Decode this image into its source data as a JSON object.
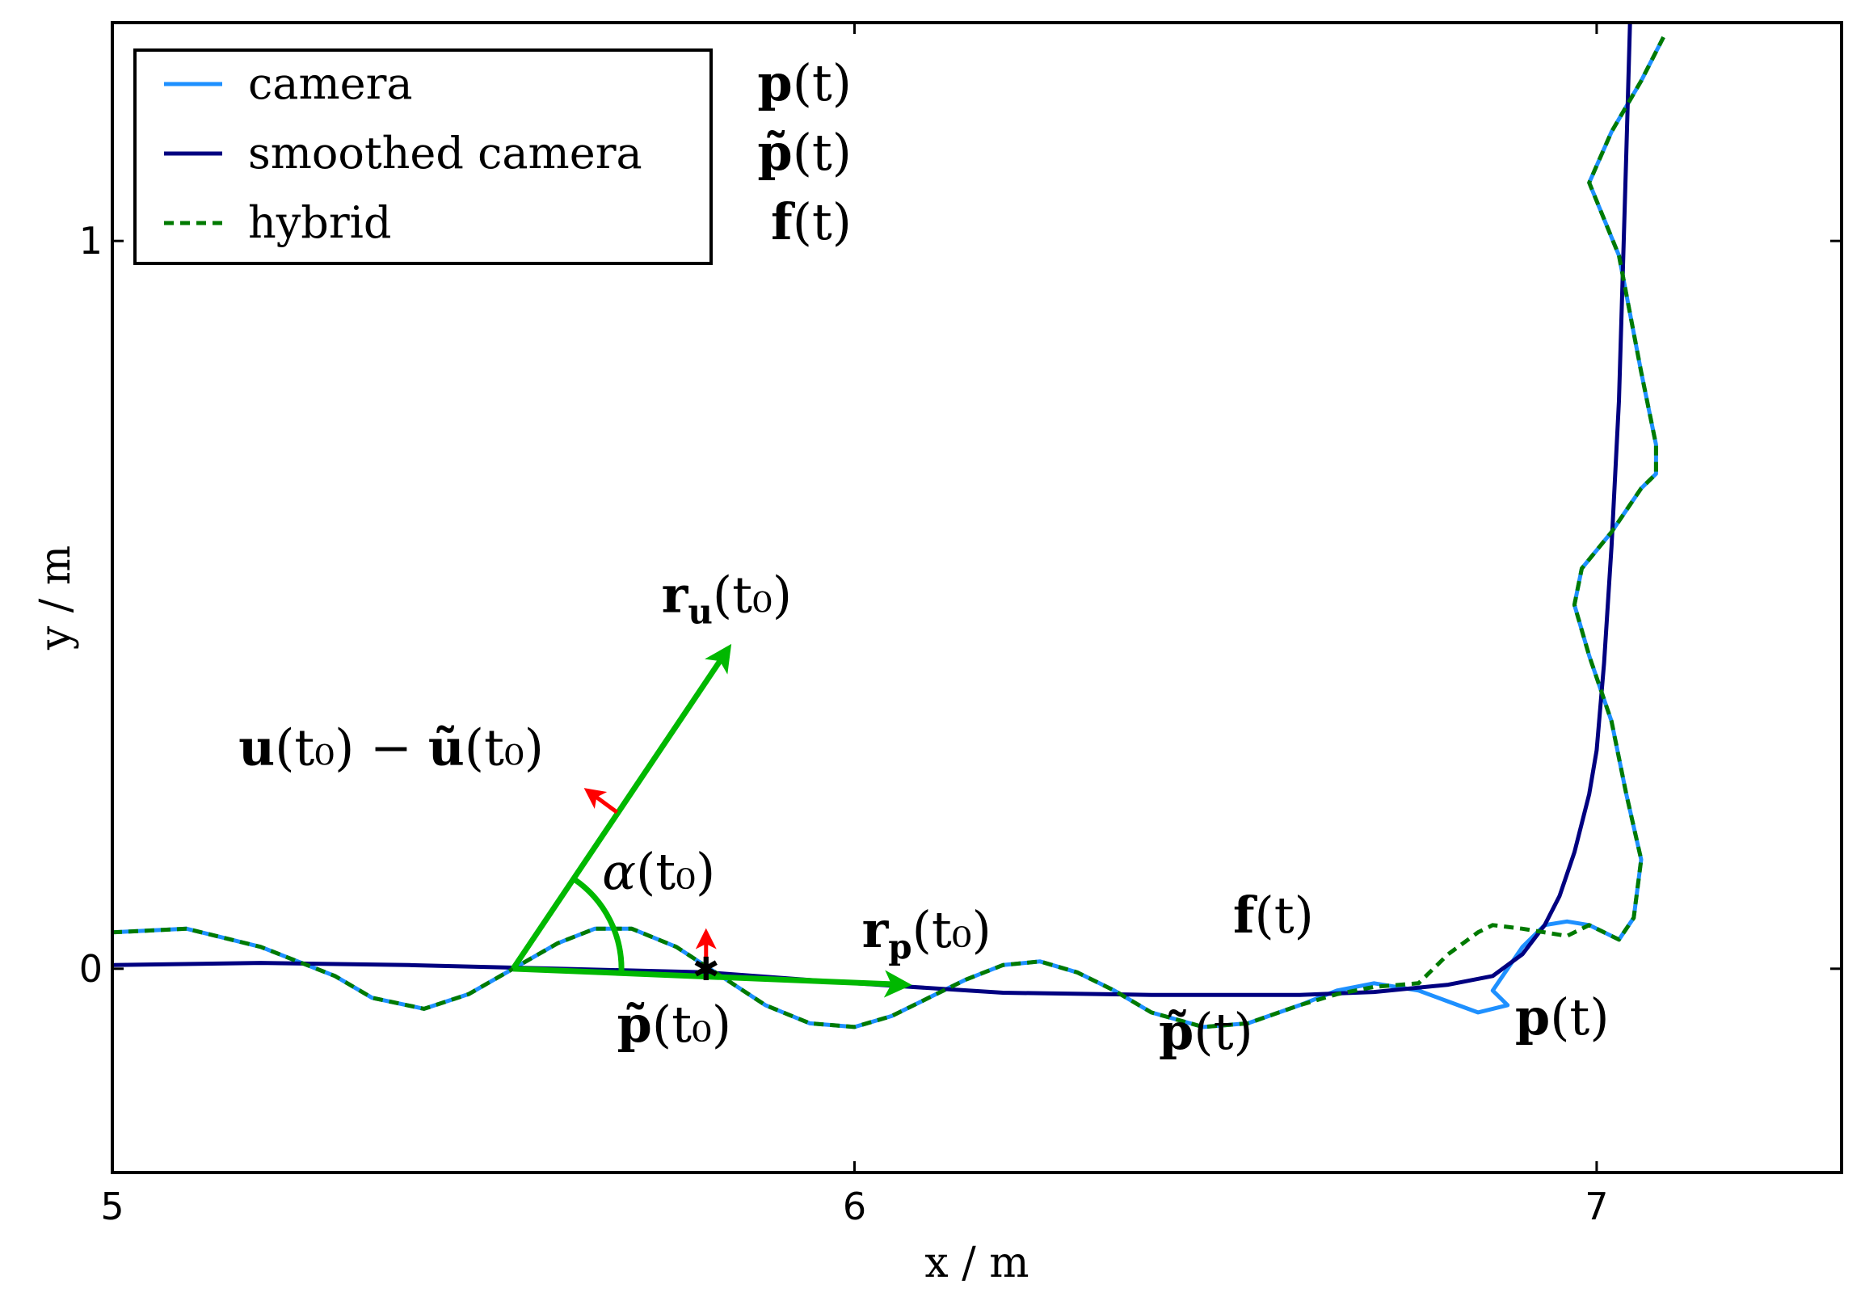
{
  "chart_data": {
    "type": "line",
    "xlabel": "x / m",
    "ylabel": "y / m",
    "xlim": [
      5.0,
      7.33
    ],
    "ylim": [
      -0.28,
      1.3
    ],
    "x_ticks": [
      {
        "value": 5,
        "label": "5"
      },
      {
        "value": 6,
        "label": "6"
      },
      {
        "value": 7,
        "label": "7"
      }
    ],
    "y_ticks": [
      {
        "value": 0,
        "label": "0"
      },
      {
        "value": 1,
        "label": "1"
      }
    ],
    "grid": false,
    "legend_position": "top-left",
    "legend": [
      {
        "label": "camera",
        "color": "#1e90ff",
        "style": "solid"
      },
      {
        "label": "smoothed camera",
        "color": "#000080",
        "style": "solid"
      },
      {
        "label": "hybrid",
        "color": "#007a00",
        "style": "dashed"
      }
    ],
    "legend_symbols": [
      {
        "bold": "p",
        "rest": "(t)"
      },
      {
        "bold": "p̃",
        "rest": "(t)"
      },
      {
        "bold": "f",
        "rest": "(t)"
      }
    ],
    "series": [
      {
        "name": "camera",
        "color": "#1e90ff",
        "style": "solid",
        "x": [
          5.0,
          5.1,
          5.2,
          5.3,
          5.35,
          5.42,
          5.48,
          5.54,
          5.6,
          5.65,
          5.7,
          5.76,
          5.82,
          5.88,
          5.94,
          6.0,
          6.05,
          6.1,
          6.15,
          6.2,
          6.25,
          6.3,
          6.35,
          6.4,
          6.47,
          6.53,
          6.6,
          6.65,
          6.7,
          6.76,
          6.8,
          6.84,
          6.88,
          6.86,
          6.9,
          6.93,
          6.96,
          6.99,
          7.03,
          7.05,
          7.06,
          7.04,
          7.02,
          6.99,
          6.97,
          6.98,
          7.02,
          7.06,
          7.08,
          7.08,
          7.06,
          7.03,
          6.99,
          7.02,
          7.06,
          7.09
        ],
        "y": [
          0.05,
          0.055,
          0.03,
          -0.01,
          -0.04,
          -0.055,
          -0.035,
          0.0,
          0.035,
          0.055,
          0.055,
          0.03,
          -0.01,
          -0.05,
          -0.075,
          -0.08,
          -0.065,
          -0.04,
          -0.015,
          0.005,
          0.01,
          -0.005,
          -0.03,
          -0.06,
          -0.08,
          -0.075,
          -0.05,
          -0.03,
          -0.02,
          -0.03,
          -0.045,
          -0.06,
          -0.05,
          -0.03,
          0.03,
          0.06,
          0.065,
          0.06,
          0.04,
          0.07,
          0.15,
          0.24,
          0.34,
          0.43,
          0.5,
          0.55,
          0.6,
          0.66,
          0.68,
          0.72,
          0.82,
          0.98,
          1.08,
          1.15,
          1.22,
          1.28
        ]
      },
      {
        "name": "smoothed camera",
        "color": "#000080",
        "style": "solid",
        "x": [
          5.0,
          5.2,
          5.4,
          5.6,
          5.8,
          6.0,
          6.2,
          6.4,
          6.6,
          6.7,
          6.8,
          6.86,
          6.9,
          6.93,
          6.95,
          6.97,
          6.99,
          7.0,
          7.01,
          7.02,
          7.03,
          7.035,
          7.04,
          7.045
        ],
        "y": [
          0.005,
          0.008,
          0.005,
          0.0,
          -0.005,
          -0.02,
          -0.033,
          -0.036,
          -0.036,
          -0.032,
          -0.022,
          -0.01,
          0.02,
          0.06,
          0.1,
          0.16,
          0.24,
          0.3,
          0.42,
          0.58,
          0.78,
          0.95,
          1.12,
          1.3
        ]
      },
      {
        "name": "hybrid",
        "color": "#007a00",
        "style": "dashed",
        "x": [
          5.0,
          5.1,
          5.2,
          5.3,
          5.35,
          5.42,
          5.48,
          5.54,
          5.6,
          5.65,
          5.7,
          5.76,
          5.82,
          5.88,
          5.94,
          6.0,
          6.05,
          6.1,
          6.15,
          6.2,
          6.25,
          6.3,
          6.35,
          6.4,
          6.47,
          6.53,
          6.6,
          6.65,
          6.7,
          6.76,
          6.8,
          6.84,
          6.86,
          6.9,
          6.93,
          6.96,
          6.99,
          7.03,
          7.05,
          7.06,
          7.04,
          7.02,
          6.99,
          6.97,
          6.98,
          7.02,
          7.06,
          7.08,
          7.08,
          7.06,
          7.03,
          6.99,
          7.02,
          7.06,
          7.09
        ],
        "y": [
          0.05,
          0.055,
          0.03,
          -0.01,
          -0.04,
          -0.055,
          -0.035,
          0.0,
          0.035,
          0.055,
          0.055,
          0.03,
          -0.01,
          -0.05,
          -0.075,
          -0.08,
          -0.065,
          -0.04,
          -0.015,
          0.005,
          0.01,
          -0.005,
          -0.03,
          -0.06,
          -0.08,
          -0.075,
          -0.05,
          -0.035,
          -0.025,
          -0.02,
          0.02,
          0.05,
          0.06,
          0.055,
          0.05,
          0.045,
          0.06,
          0.04,
          0.07,
          0.15,
          0.24,
          0.34,
          0.43,
          0.5,
          0.55,
          0.6,
          0.66,
          0.68,
          0.72,
          0.82,
          0.98,
          1.08,
          1.15,
          1.22,
          1.28
        ]
      }
    ],
    "vectors": [
      {
        "name": "r_u(t0)",
        "color": "#00b800",
        "from": [
          5.54,
          0.0
        ],
        "to": [
          5.83,
          0.44
        ]
      },
      {
        "name": "r_p(t0)",
        "color": "#00b800",
        "from": [
          5.54,
          0.0
        ],
        "to": [
          6.07,
          -0.022
        ]
      },
      {
        "name": "u(t0) - ũ(t0)",
        "color": "#ff0000",
        "from": [
          5.68,
          0.215
        ],
        "to": [
          5.64,
          0.245
        ]
      },
      {
        "name": "normal",
        "color": "#ff0000",
        "from": [
          5.8,
          0.0
        ],
        "to": [
          5.8,
          0.05
        ]
      }
    ],
    "angle_arc": {
      "label": "α(t0)",
      "center": [
        5.54,
        0.0
      ],
      "radius": 0.146,
      "color": "#00b800"
    },
    "marker_point": [
      5.8,
      0.0
    ],
    "annotations": [
      {
        "bold": "r",
        "sub": "u",
        "rest": "(t₀)",
        "x": 5.74,
        "y": 0.49
      },
      {
        "bold": "u",
        "rest": "(t₀) − ",
        "bold2": "ũ",
        "rest2": "(t₀)",
        "x": 5.17,
        "y": 0.28
      },
      {
        "italic": "α",
        "rest": "(t₀)",
        "x": 5.66,
        "y": 0.11
      },
      {
        "bold": "r",
        "sub": "p",
        "rest": "(t₀)",
        "x": 6.01,
        "y": 0.03
      },
      {
        "bold": "p̃",
        "rest": "(t₀)",
        "x": 5.68,
        "y": -0.1
      },
      {
        "bold": "f",
        "rest": "(t)",
        "x": 6.51,
        "y": 0.05
      },
      {
        "bold": "p̃",
        "rest": "(t)",
        "x": 6.41,
        "y": -0.11
      },
      {
        "bold": "p",
        "rest": "(t)",
        "x": 6.89,
        "y": -0.09
      }
    ]
  }
}
